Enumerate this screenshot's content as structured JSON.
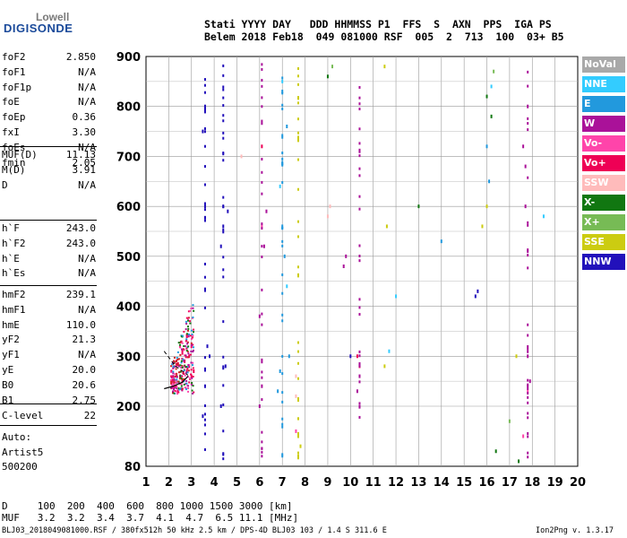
{
  "logo": {
    "line1": "Lowell",
    "line2": "DIGISONDE"
  },
  "header": {
    "line1": "Stati YYYY DAY   DDD HHMMSS P1  FFS  S  AXN  PPS  IGA PS",
    "line2": "Belem 2018 Feb18  049 081000 RSF  005  2  713  100  03+ B5"
  },
  "params": {
    "group1": [
      {
        "k": "foF2",
        "v": "2.850"
      },
      {
        "k": "foF1",
        "v": "N/A"
      },
      {
        "k": "foF1p",
        "v": "N/A"
      },
      {
        "k": "foE",
        "v": "N/A"
      },
      {
        "k": "foEp",
        "v": "0.36"
      },
      {
        "k": "fxI",
        "v": "3.30"
      },
      {
        "k": "foEs",
        "v": "N/A"
      },
      {
        "k": "fmin",
        "v": "2.05"
      }
    ],
    "group2": [
      {
        "k": "MUF(D)",
        "v": "11.13"
      },
      {
        "k": "M(D)",
        "v": "3.91"
      },
      {
        "k": "D",
        "v": "N/A"
      }
    ],
    "group3": [
      {
        "k": "h`F",
        "v": "243.0"
      },
      {
        "k": "h`F2",
        "v": "243.0"
      },
      {
        "k": "h`E",
        "v": "N/A"
      },
      {
        "k": "h`Es",
        "v": "N/A"
      }
    ],
    "group4": [
      {
        "k": "hmF2",
        "v": "239.1"
      },
      {
        "k": "hmF1",
        "v": "N/A"
      },
      {
        "k": "hmE",
        "v": "110.0"
      },
      {
        "k": "yF2",
        "v": "21.3"
      },
      {
        "k": "yF1",
        "v": "N/A"
      },
      {
        "k": "yE",
        "v": "20.0"
      },
      {
        "k": "B0",
        "v": "20.6"
      },
      {
        "k": "B1",
        "v": "2.75"
      }
    ],
    "clevel": {
      "k": "C-level",
      "v": "22"
    },
    "auto": [
      "Auto:",
      "Artist5",
      "500200"
    ]
  },
  "legend": [
    {
      "label": "NoVal",
      "color": "#a9a9a9"
    },
    {
      "label": "NNE",
      "color": "#33ccff"
    },
    {
      "label": "E",
      "color": "#2299dd"
    },
    {
      "label": "W",
      "color": "#aa1199"
    },
    {
      "label": "Vo-",
      "color": "#ff44aa"
    },
    {
      "label": "Vo+",
      "color": "#ee0055"
    },
    {
      "label": "SSW",
      "color": "#ffbbbb"
    },
    {
      "label": "X-",
      "color": "#117711"
    },
    {
      "label": "X+",
      "color": "#77bb55"
    },
    {
      "label": "SSE",
      "color": "#cccc11"
    },
    {
      "label": "NNW",
      "color": "#2211bb"
    }
  ],
  "bottom": {
    "line1": "D     100  200  400  600  800 1000 1500 3000 [km]",
    "line2": "MUF   3.2  3.2  3.4  3.7  4.1  4.7  6.5 11.1 [MHz]"
  },
  "footer": "BLJ03_2018049081000.RSF / 380fx512h 50 kHz 2.5 km / DPS-4D BLJ03 103 / 1.4 S 311.6 E",
  "version": "Ion2Png v. 1.3.17",
  "chart_data": {
    "type": "scatter",
    "xlabel": "",
    "ylabel": "",
    "xlim": [
      1,
      20
    ],
    "ylim": [
      80,
      900
    ],
    "xticks": [
      "1",
      "2",
      "3",
      "4",
      "5",
      "6",
      "7",
      "8",
      "9",
      "10",
      "11",
      "12",
      "13",
      "14",
      "15",
      "16",
      "17",
      "18",
      "19",
      "20"
    ],
    "yticks": [
      "80",
      "200",
      "300",
      "400",
      "500",
      "600",
      "700",
      "800",
      "900"
    ],
    "grid": true,
    "notes": "ionogram echo traces; frequency axis MHz, virtual height axis km",
    "series": [
      {
        "name": "Vo+",
        "color": "#ee0055",
        "points": [
          [
            2.4,
            230
          ],
          [
            2.6,
            250
          ],
          [
            2.8,
            270
          ],
          [
            2.9,
            300
          ],
          [
            3.0,
            320
          ],
          [
            2.5,
            260
          ],
          [
            2.7,
            290
          ],
          [
            2.3,
            240
          ],
          [
            2.9,
            280
          ],
          [
            3.0,
            260
          ],
          [
            2.6,
            310
          ],
          [
            2.8,
            340
          ],
          [
            3.1,
            270
          ],
          [
            6.1,
            720
          ],
          [
            10.3,
            300
          ],
          [
            10.4,
            280
          ]
        ]
      },
      {
        "name": "W",
        "color": "#aa1199",
        "points": [
          [
            6.0,
            200
          ],
          [
            6.1,
            240
          ],
          [
            6.0,
            380
          ],
          [
            6.2,
            520
          ],
          [
            6.3,
            590
          ],
          [
            9.7,
            480
          ],
          [
            9.8,
            500
          ],
          [
            10.3,
            230
          ],
          [
            10.4,
            260
          ],
          [
            17.7,
            600
          ],
          [
            17.8,
            300
          ],
          [
            17.9,
            250
          ],
          [
            17.8,
            800
          ],
          [
            17.6,
            720
          ],
          [
            17.7,
            680
          ]
        ]
      },
      {
        "name": "NNW",
        "color": "#2211bb",
        "points": [
          [
            3.5,
            180
          ],
          [
            3.6,
            600
          ],
          [
            3.6,
            800
          ],
          [
            3.5,
            750
          ],
          [
            3.6,
            240
          ],
          [
            4.3,
            200
          ],
          [
            4.4,
            600
          ],
          [
            4.3,
            520
          ],
          [
            4.4,
            560
          ],
          [
            4.5,
            280
          ],
          [
            4.6,
            590
          ],
          [
            3.7,
            320
          ],
          [
            3.8,
            300
          ],
          [
            15.5,
            420
          ],
          [
            15.6,
            430
          ],
          [
            10.0,
            300
          ]
        ]
      },
      {
        "name": "E",
        "color": "#2299dd",
        "points": [
          [
            6.9,
            270
          ],
          [
            7.0,
            560
          ],
          [
            7.1,
            500
          ],
          [
            7.2,
            760
          ],
          [
            7.0,
            830
          ],
          [
            7.3,
            300
          ],
          [
            6.8,
            230
          ],
          [
            16.1,
            650
          ],
          [
            16.0,
            720
          ],
          [
            14.0,
            530
          ]
        ]
      },
      {
        "name": "NNE",
        "color": "#33ccff",
        "points": [
          [
            7.0,
            850
          ],
          [
            6.9,
            640
          ],
          [
            7.2,
            440
          ],
          [
            11.7,
            310
          ],
          [
            12.0,
            420
          ],
          [
            16.2,
            840
          ],
          [
            18.5,
            580
          ]
        ]
      },
      {
        "name": "SSE",
        "color": "#cccc11",
        "points": [
          [
            7.7,
            100
          ],
          [
            7.7,
            140
          ],
          [
            7.8,
            120
          ],
          [
            11.5,
            280
          ],
          [
            11.6,
            560
          ],
          [
            11.5,
            880
          ],
          [
            15.8,
            560
          ],
          [
            16.0,
            600
          ],
          [
            17.3,
            300
          ]
        ]
      },
      {
        "name": "X-",
        "color": "#117711",
        "points": [
          [
            16.2,
            780
          ],
          [
            16.0,
            820
          ],
          [
            17.4,
            90
          ],
          [
            16.4,
            110
          ],
          [
            9.0,
            860
          ],
          [
            13.0,
            600
          ]
        ]
      },
      {
        "name": "X+",
        "color": "#77bb55",
        "points": [
          [
            16.3,
            870
          ],
          [
            17.0,
            170
          ],
          [
            9.2,
            880
          ]
        ]
      },
      {
        "name": "SSW",
        "color": "#ffbbbb",
        "points": [
          [
            7.6,
            220
          ],
          [
            7.6,
            260
          ],
          [
            9.1,
            600
          ],
          [
            9.0,
            580
          ],
          [
            5.2,
            700
          ]
        ]
      },
      {
        "name": "Vo-",
        "color": "#ff44aa",
        "points": [
          [
            7.6,
            150
          ],
          [
            17.8,
            230
          ],
          [
            17.6,
            140
          ],
          [
            6.1,
            560
          ]
        ]
      }
    ],
    "profile": {
      "color": "#000000",
      "points": [
        [
          1.8,
          235
        ],
        [
          2.2,
          240
        ],
        [
          2.6,
          248
        ],
        [
          2.85,
          260
        ]
      ]
    },
    "profile_dashed": {
      "color": "#000000",
      "points": [
        [
          1.8,
          310
        ],
        [
          2.3,
          280
        ],
        [
          2.85,
          262
        ]
      ]
    }
  }
}
